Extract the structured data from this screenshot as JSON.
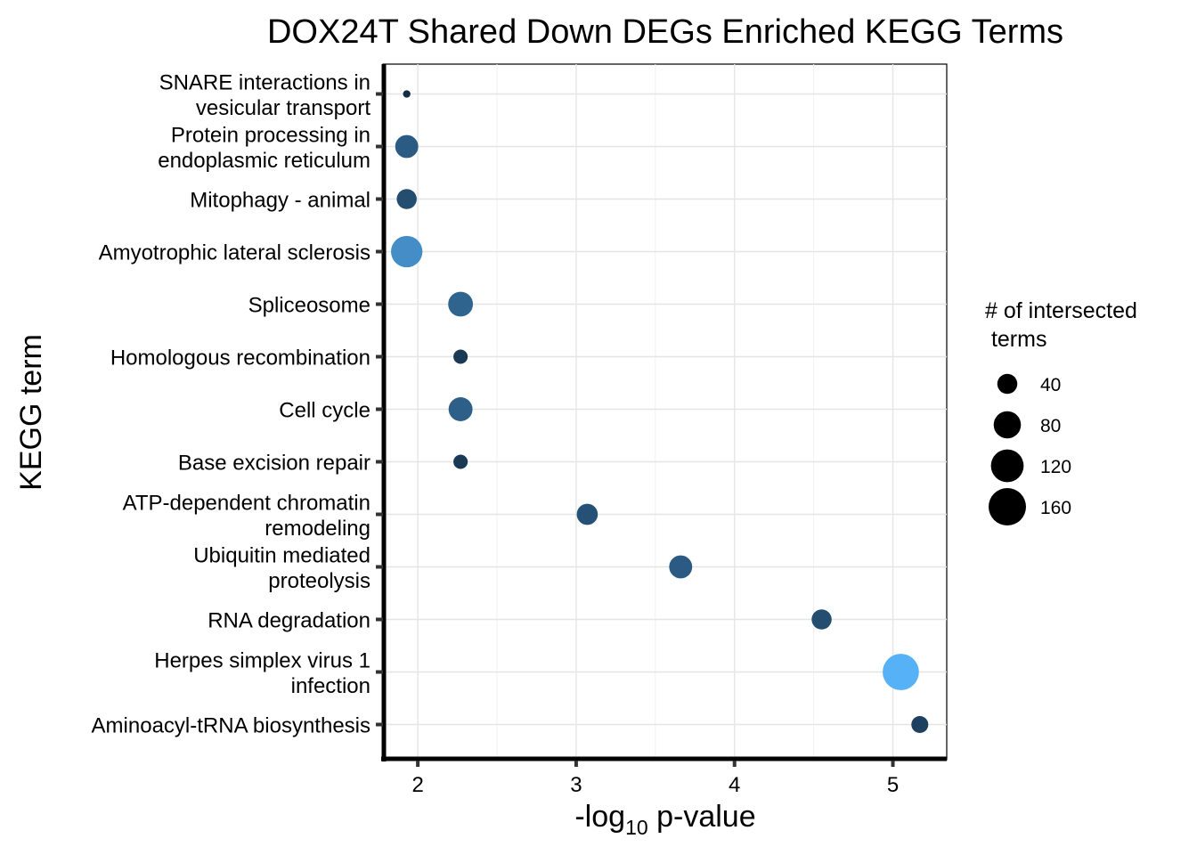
{
  "chart_data": {
    "type": "scatter",
    "title": "DOX24T Shared Down DEGs Enriched KEGG Terms",
    "xlabel_prefix": "-log",
    "xlabel_subscript": "10",
    "xlabel_suffix": " p-value",
    "ylabel": "KEGG term",
    "xlim": [
      1.78,
      5.34
    ],
    "xticks": [
      2,
      3,
      4,
      5
    ],
    "grid": true,
    "size_legend": {
      "title_line1": "# of intersected",
      "title_line2": " terms",
      "breaks": [
        40,
        80,
        120,
        160
      ],
      "position": "right"
    },
    "color_scale": {
      "low": "#132b43",
      "high": "#56b1f7"
    },
    "terms": [
      {
        "label_lines": [
          "SNARE interactions in",
          "vesicular transport"
        ],
        "x": 1.93,
        "size": 3
      },
      {
        "label_lines": [
          "Protein processing in",
          "endoplasmic reticulum"
        ],
        "x": 1.93,
        "size": 55
      },
      {
        "label_lines": [
          "Mitophagy - animal"
        ],
        "x": 1.93,
        "size": 40
      },
      {
        "label_lines": [
          "Amyotrophic lateral sclerosis"
        ],
        "x": 1.93,
        "size": 110
      },
      {
        "label_lines": [
          "Spliceosome"
        ],
        "x": 2.27,
        "size": 65
      },
      {
        "label_lines": [
          "Homologous recombination"
        ],
        "x": 2.27,
        "size": 18
      },
      {
        "label_lines": [
          "Cell cycle"
        ],
        "x": 2.27,
        "size": 60
      },
      {
        "label_lines": [
          "Base excision repair"
        ],
        "x": 2.27,
        "size": 18
      },
      {
        "label_lines": [
          "ATP-dependent chromatin",
          "remodeling"
        ],
        "x": 3.07,
        "size": 45
      },
      {
        "label_lines": [
          "Ubiquitin mediated",
          "proteolysis"
        ],
        "x": 3.66,
        "size": 55
      },
      {
        "label_lines": [
          "RNA degradation"
        ],
        "x": 4.55,
        "size": 40
      },
      {
        "label_lines": [
          "Herpes simplex virus 1",
          "infection"
        ],
        "x": 5.05,
        "size": 150
      },
      {
        "label_lines": [
          "Aminoacyl-tRNA biosynthesis"
        ],
        "x": 5.17,
        "size": 27
      }
    ]
  }
}
